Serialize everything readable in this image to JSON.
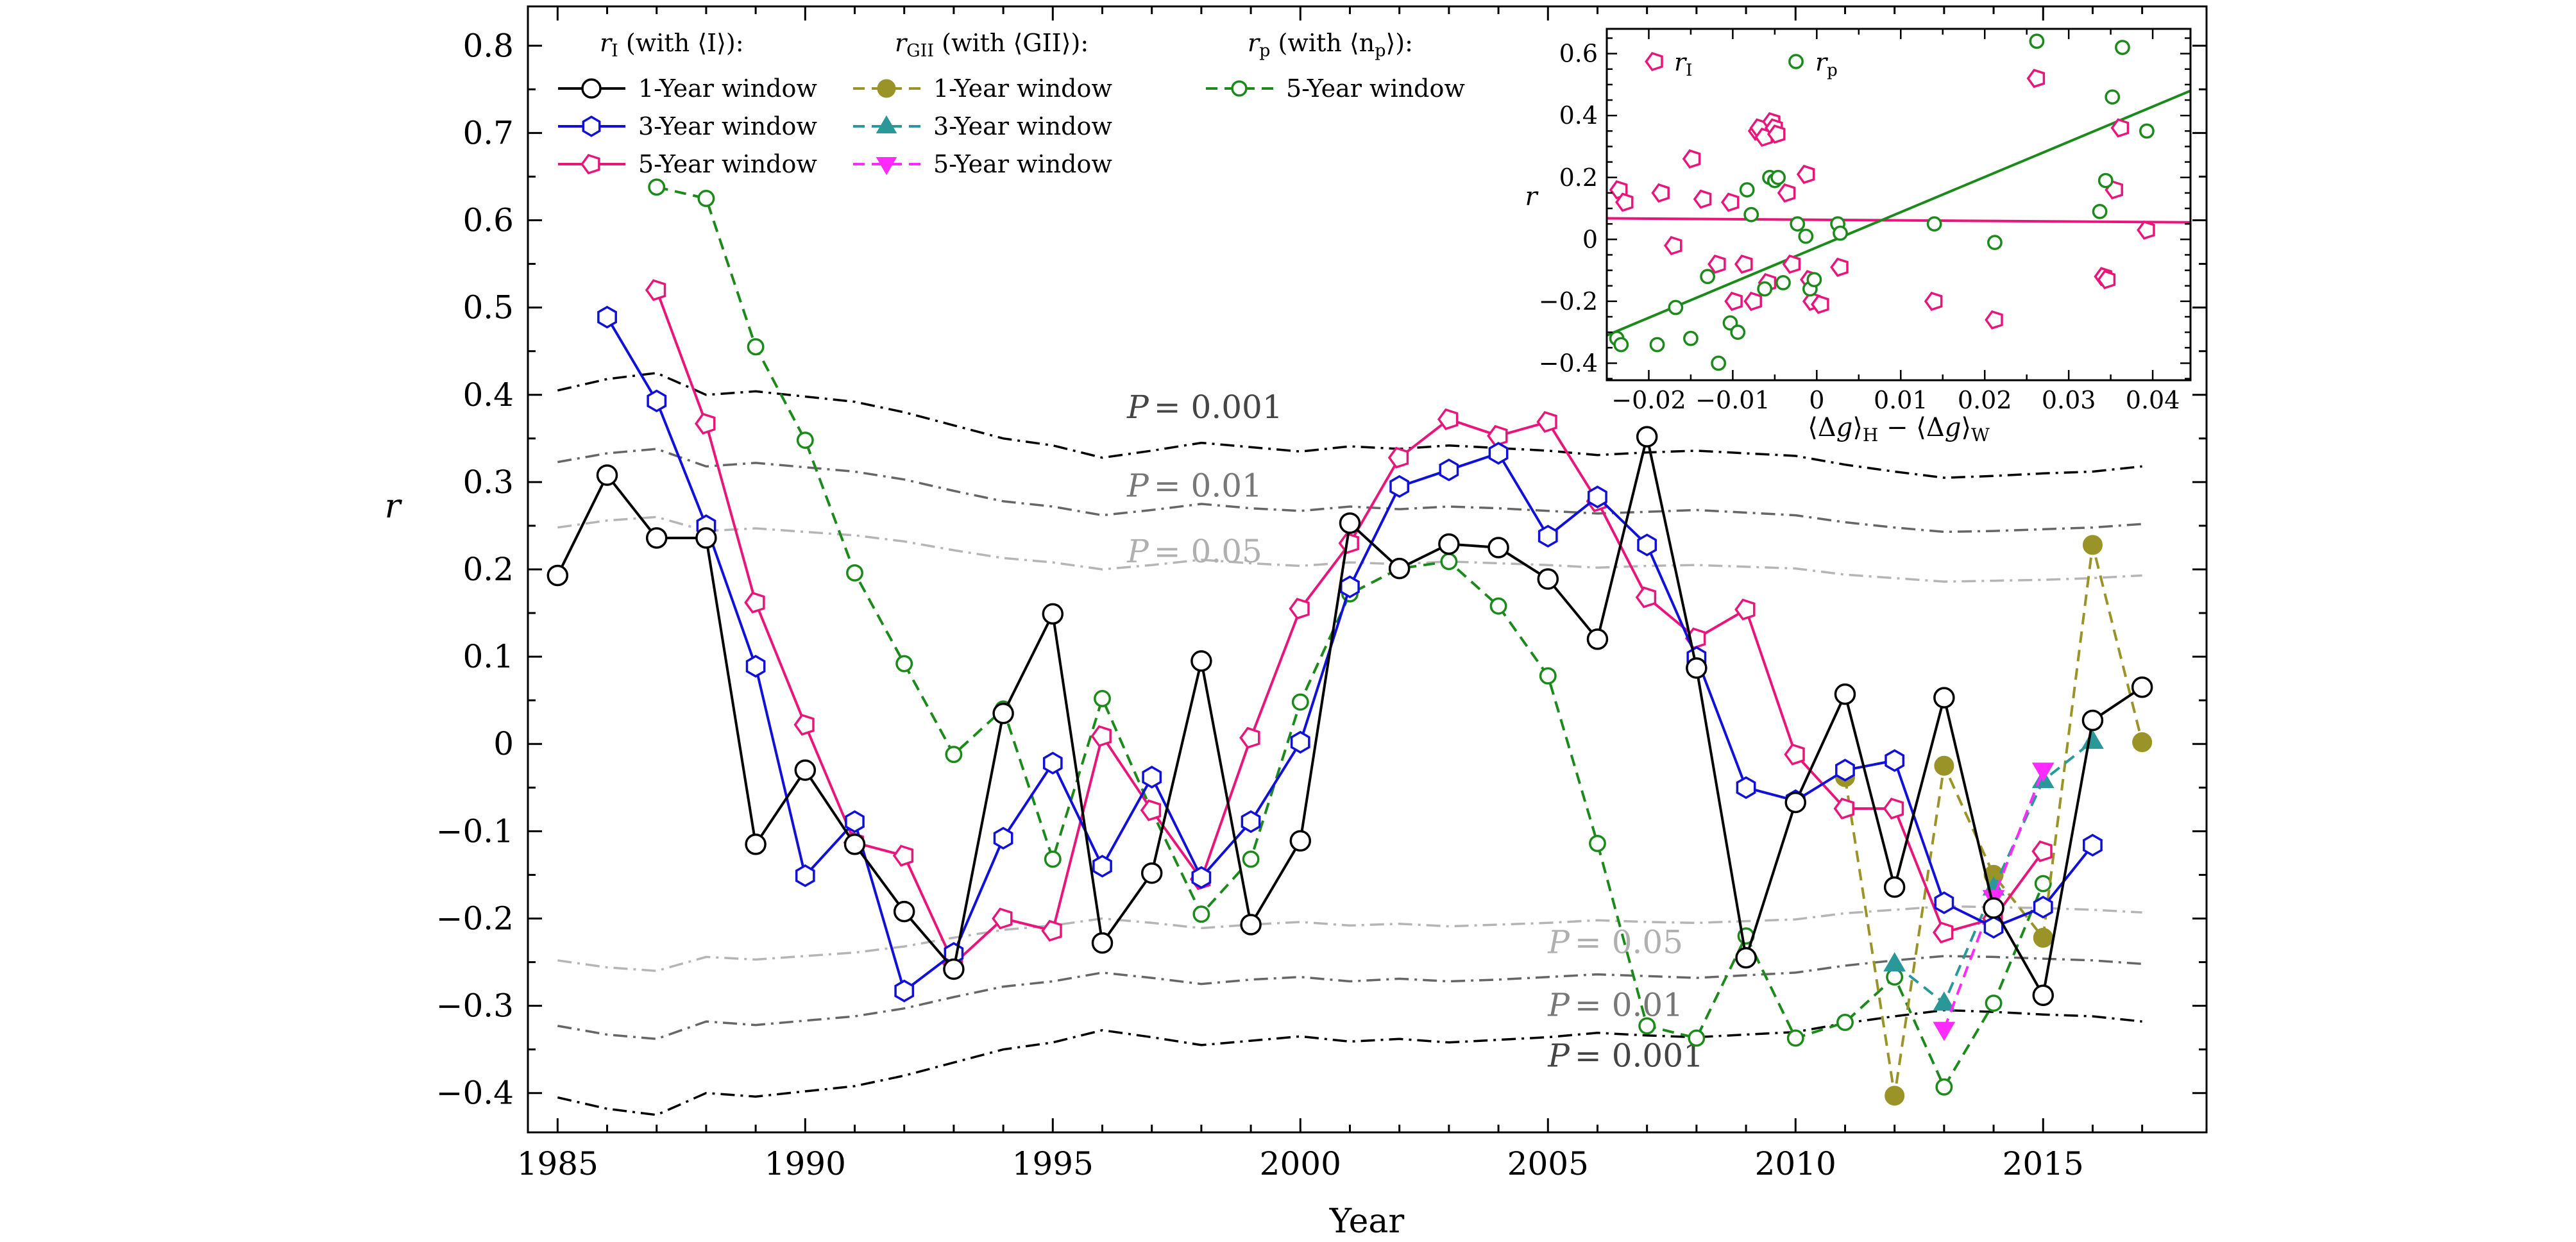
{
  "chart_data": [
    {
      "type": "line",
      "title": "",
      "xlabel": "Year",
      "ylabel": "r",
      "xlim": [
        1984.4,
        2018.3
      ],
      "ylim": [
        -0.445,
        0.845
      ],
      "xticks": [
        1985,
        1990,
        1995,
        2000,
        2005,
        2010,
        2015
      ],
      "yticks": [
        -0.4,
        -0.3,
        -0.2,
        -0.1,
        0,
        0.1,
        0.2,
        0.3,
        0.4,
        0.5,
        0.6,
        0.7,
        0.8
      ],
      "ytick_labels": [
        "−0.4",
        "−0.3",
        "−0.2",
        "−0.1",
        "0",
        "0.1",
        "0.2",
        "0.3",
        "0.4",
        "0.5",
        "0.6",
        "0.7",
        "0.8"
      ],
      "legend_placement": "top, three columns",
      "legend_groups": [
        {
          "header": "rI (with ⟨I⟩):",
          "symbol": "r",
          "subscript": "I",
          "with_text": " (with ⟨I⟩):",
          "entries": [
            "1-Year window",
            "3-Year window",
            "5-Year window"
          ]
        },
        {
          "header": "rGII (with ⟨GII⟩):",
          "symbol": "r",
          "subscript": "GII",
          "with_text": " (with ⟨GII⟩):",
          "entries": [
            "1-Year window",
            "3-Year window",
            "5-Year window"
          ]
        },
        {
          "header": "rp (with ⟨np⟩):",
          "symbol": "r",
          "subscript": "p",
          "with_text": " (with ⟨n",
          "with_sub": "p",
          "with_end": "⟩):",
          "entries": [
            "5-Year window"
          ]
        }
      ],
      "series": [
        {
          "name": "1-Year window",
          "group": "rI",
          "color": "#000000",
          "marker": "circle-open",
          "dash": "solid",
          "x": [
            1985,
            1986,
            1987,
            1988,
            1989,
            1990,
            1991,
            1992,
            1993,
            1994,
            1995,
            1996,
            1997,
            1998,
            1999,
            2000,
            2001,
            2002,
            2003,
            2004,
            2005,
            2006,
            2007,
            2008,
            2009,
            2010,
            2011,
            2012,
            2013,
            2014,
            2015,
            2016,
            2017
          ],
          "y": [
            0.193,
            0.308,
            0.236,
            0.236,
            -0.115,
            -0.03,
            -0.115,
            -0.192,
            -0.258,
            0.035,
            0.149,
            -0.228,
            -0.148,
            0.095,
            -0.207,
            -0.111,
            0.253,
            0.201,
            0.229,
            0.225,
            0.189,
            0.12,
            0.352,
            0.087,
            -0.245,
            -0.067,
            0.057,
            -0.164,
            0.053,
            -0.188,
            -0.288,
            0.027,
            0.065
          ]
        },
        {
          "name": "3-Year window",
          "group": "rI",
          "color": "#1010d8",
          "marker": "hexagon-open",
          "dash": "solid",
          "x": [
            1986,
            1987,
            1988,
            1989,
            1990,
            1991,
            1992,
            1993,
            1994,
            1995,
            1996,
            1997,
            1998,
            1999,
            2000,
            2001,
            2002,
            2003,
            2004,
            2005,
            2006,
            2007,
            2008,
            2009,
            2010,
            2011,
            2012,
            2013,
            2014,
            2015,
            2016
          ],
          "y": [
            0.489,
            0.393,
            0.25,
            0.089,
            -0.151,
            -0.089,
            -0.283,
            -0.24,
            -0.108,
            -0.022,
            -0.14,
            -0.038,
            -0.153,
            -0.089,
            0.002,
            0.18,
            0.295,
            0.314,
            0.333,
            0.238,
            0.283,
            0.228,
            0.099,
            -0.05,
            -0.065,
            -0.03,
            -0.019,
            -0.182,
            -0.21,
            -0.187,
            -0.116
          ]
        },
        {
          "name": "5-Year window",
          "group": "rI",
          "color": "#e8167a",
          "marker": "pentagon-open",
          "dash": "solid",
          "x": [
            1987,
            1988,
            1989,
            1990,
            1991,
            1992,
            1993,
            1994,
            1995,
            1996,
            1997,
            1998,
            1999,
            2000,
            2001,
            2002,
            2003,
            2004,
            2005,
            2006,
            2007,
            2008,
            2009,
            2010,
            2011,
            2012,
            2013,
            2014,
            2015
          ],
          "y": [
            0.52,
            0.367,
            0.162,
            0.022,
            -0.113,
            -0.128,
            -0.252,
            -0.2,
            -0.214,
            0.009,
            -0.076,
            -0.155,
            0.007,
            0.155,
            0.23,
            0.328,
            0.372,
            0.353,
            0.369,
            0.278,
            0.168,
            0.121,
            0.154,
            -0.012,
            -0.074,
            -0.074,
            -0.216,
            -0.2,
            -0.123
          ]
        },
        {
          "name": "1-Year window",
          "group": "rGII",
          "color": "#9a9428",
          "marker": "circle-filled",
          "dash": "dashed",
          "x": [
            2011,
            2012,
            2013,
            2014,
            2015,
            2016,
            2017
          ],
          "y": [
            -0.038,
            -0.403,
            -0.025,
            -0.15,
            -0.222,
            0.228,
            0.002
          ]
        },
        {
          "name": "3-Year window",
          "group": "rGII",
          "color": "#2a9898",
          "marker": "triangle-up-filled",
          "dash": "dashed",
          "x": [
            2012,
            2013,
            2014,
            2015,
            2016
          ],
          "y": [
            -0.252,
            -0.297,
            -0.165,
            -0.042,
            0.003
          ]
        },
        {
          "name": "5-Year window",
          "group": "rGII",
          "color": "#ff2aff",
          "marker": "triangle-down-filled",
          "dash": "dashed",
          "x": [
            2013,
            2014,
            2015
          ],
          "y": [
            -0.327,
            -0.176,
            -0.03
          ]
        },
        {
          "name": "5-Year window",
          "group": "rp",
          "color": "#1b8a1b",
          "marker": "circle-open-small",
          "dash": "dashed",
          "x": [
            1987,
            1988,
            1989,
            1990,
            1991,
            1992,
            1993,
            1994,
            1995,
            1996,
            1997,
            1998,
            1999,
            2000,
            2001,
            2002,
            2003,
            2004,
            2005,
            2006,
            2007,
            2008,
            2009,
            2010,
            2011,
            2012,
            2013,
            2014,
            2015
          ],
          "y": [
            0.638,
            0.625,
            0.455,
            0.348,
            0.196,
            0.092,
            -0.012,
            0.04,
            -0.132,
            0.052,
            -0.077,
            -0.195,
            -0.132,
            0.048,
            0.172,
            0.201,
            0.209,
            0.158,
            0.078,
            -0.114,
            -0.323,
            -0.337,
            -0.22,
            -0.337,
            -0.319,
            -0.267,
            -0.393,
            -0.297,
            -0.16
          ]
        }
      ],
      "significance_levels": [
        {
          "label": "P = 0.001",
          "color": "#000000",
          "x": [
            1985,
            1986,
            1987,
            1988,
            1989,
            1990,
            1991,
            1992,
            1993,
            1994,
            1995,
            1996,
            1997,
            1998,
            1999,
            2000,
            2001,
            2002,
            2003,
            2004,
            2005,
            2006,
            2007,
            2008,
            2009,
            2010,
            2011,
            2012,
            2013,
            2014,
            2015,
            2016,
            2017
          ],
          "y": [
            0.405,
            0.418,
            0.425,
            0.4,
            0.404,
            0.398,
            0.392,
            0.38,
            0.365,
            0.35,
            0.342,
            0.328,
            0.336,
            0.345,
            0.34,
            0.335,
            0.341,
            0.338,
            0.342,
            0.339,
            0.336,
            0.331,
            0.334,
            0.336,
            0.333,
            0.33,
            0.32,
            0.312,
            0.305,
            0.307,
            0.31,
            0.312,
            0.318
          ]
        },
        {
          "label": "P = 0.01",
          "color": "#666666",
          "x": [
            1985,
            1986,
            1987,
            1988,
            1989,
            1990,
            1991,
            1992,
            1993,
            1994,
            1995,
            1996,
            1997,
            1998,
            1999,
            2000,
            2001,
            2002,
            2003,
            2004,
            2005,
            2006,
            2007,
            2008,
            2009,
            2010,
            2011,
            2012,
            2013,
            2014,
            2015,
            2016,
            2017
          ],
          "y": [
            0.323,
            0.333,
            0.338,
            0.318,
            0.322,
            0.317,
            0.312,
            0.303,
            0.29,
            0.278,
            0.272,
            0.262,
            0.268,
            0.275,
            0.27,
            0.267,
            0.272,
            0.269,
            0.272,
            0.27,
            0.267,
            0.264,
            0.266,
            0.268,
            0.265,
            0.262,
            0.254,
            0.248,
            0.243,
            0.244,
            0.246,
            0.248,
            0.252
          ]
        },
        {
          "label": "P = 0.05",
          "color": "#b5b5b5",
          "x": [
            1985,
            1986,
            1987,
            1988,
            1989,
            1990,
            1991,
            1992,
            1993,
            1994,
            1995,
            1996,
            1997,
            1998,
            1999,
            2000,
            2001,
            2002,
            2003,
            2004,
            2005,
            2006,
            2007,
            2008,
            2009,
            2010,
            2011,
            2012,
            2013,
            2014,
            2015,
            2016,
            2017
          ],
          "y": [
            0.248,
            0.256,
            0.26,
            0.244,
            0.247,
            0.243,
            0.239,
            0.232,
            0.222,
            0.213,
            0.208,
            0.2,
            0.205,
            0.211,
            0.207,
            0.204,
            0.208,
            0.206,
            0.209,
            0.207,
            0.205,
            0.202,
            0.204,
            0.205,
            0.203,
            0.201,
            0.194,
            0.19,
            0.186,
            0.187,
            0.188,
            0.19,
            0.193
          ]
        }
      ],
      "significance_labels": [
        {
          "text": "P = 0.001",
          "letter": "P",
          "value": "= 0.001",
          "x": 1996.5,
          "y": 0.385
        },
        {
          "text": "P = 0.01",
          "letter": "P",
          "value": "= 0.01",
          "x": 1996.5,
          "y": 0.295
        },
        {
          "text": "P = 0.05",
          "letter": "P",
          "value": "= 0.05",
          "x": 1996.5,
          "y": 0.22
        },
        {
          "text": "P = 0.05",
          "letter": "P",
          "value": "= 0.05",
          "x": 2005.0,
          "y": -0.228
        },
        {
          "text": "P = 0.01",
          "letter": "P",
          "value": "= 0.01",
          "x": 2005.0,
          "y": -0.3
        },
        {
          "text": "P = 0.001",
          "letter": "P",
          "value": "= 0.001",
          "x": 2005.0,
          "y": -0.358
        }
      ]
    },
    {
      "type": "scatter",
      "title": "",
      "xlabel": "⟨Δg⟩H − ⟨Δg⟩W",
      "ylabel": "r",
      "xlim": [
        -0.025,
        0.0445
      ],
      "ylim": [
        -0.455,
        0.68
      ],
      "xticks": [
        -0.02,
        -0.01,
        0,
        0.01,
        0.02,
        0.03,
        0.04
      ],
      "xtick_labels": [
        "−0.02",
        "−0.01",
        "0",
        "0.01",
        "0.02",
        "0.03",
        "0.04"
      ],
      "yticks": [
        -0.4,
        -0.2,
        0,
        0.2,
        0.4,
        0.6
      ],
      "ytick_labels": [
        "−0.4",
        "−0.2",
        "0",
        "0.2",
        "0.4",
        "0.6"
      ],
      "legend_placement": "top-left",
      "series": [
        {
          "name": "rI",
          "symbol": "r",
          "subscript": "I",
          "color": "#e8167a",
          "marker": "pentagon-open",
          "x": [
            -0.0235,
            -0.0228,
            -0.0185,
            -0.017,
            -0.0148,
            -0.0135,
            -0.0118,
            -0.0102,
            -0.0098,
            -0.0086,
            -0.0075,
            -0.007,
            -0.0068,
            -0.0062,
            -0.0058,
            -0.0053,
            -0.005,
            -0.0047,
            -0.0035,
            -0.0029,
            -0.0012,
            -0.0008,
            -0.0005,
            0.0005,
            0.0028,
            0.014,
            0.0212,
            0.0262,
            0.0342,
            0.0346,
            0.0355,
            0.0362,
            0.0393
          ],
          "y": [
            0.16,
            0.12,
            0.15,
            -0.02,
            0.26,
            0.13,
            -0.08,
            0.12,
            -0.2,
            -0.08,
            -0.2,
            0.35,
            0.36,
            0.33,
            -0.14,
            0.38,
            0.36,
            0.34,
            0.15,
            -0.08,
            0.21,
            -0.13,
            -0.2,
            -0.21,
            -0.09,
            -0.2,
            -0.26,
            0.52,
            -0.12,
            -0.13,
            0.16,
            0.36,
            0.03
          ]
        },
        {
          "name": "rp",
          "symbol": "r",
          "subscript": "p",
          "color": "#1b8a1b",
          "marker": "circle-open",
          "x": [
            -0.0238,
            -0.0233,
            -0.019,
            -0.0168,
            -0.015,
            -0.013,
            -0.0117,
            -0.0103,
            -0.0094,
            -0.0083,
            -0.0078,
            -0.0062,
            -0.0056,
            -0.005,
            -0.0046,
            -0.004,
            -0.0023,
            -0.0013,
            -0.0008,
            -0.0003,
            0.0025,
            0.0028,
            0.014,
            0.0212,
            0.0262,
            0.0337,
            0.0344,
            0.0352,
            0.0364,
            0.0393
          ],
          "y": [
            -0.32,
            -0.34,
            -0.34,
            -0.22,
            -0.32,
            -0.12,
            -0.4,
            -0.27,
            -0.3,
            0.16,
            0.08,
            -0.16,
            0.2,
            0.19,
            0.2,
            -0.14,
            0.05,
            0.01,
            -0.16,
            -0.13,
            0.05,
            0.02,
            0.05,
            -0.01,
            0.64,
            0.09,
            0.19,
            0.46,
            0.62,
            0.35
          ]
        }
      ],
      "fit_lines": [
        {
          "name": "rI fit",
          "color": "#e8167a",
          "x": [
            -0.025,
            0.0445
          ],
          "y": [
            0.068,
            0.055
          ]
        },
        {
          "name": "rp fit",
          "color": "#1b8a1b",
          "x": [
            -0.025,
            0.0445
          ],
          "y": [
            -0.31,
            0.48
          ]
        }
      ]
    }
  ]
}
